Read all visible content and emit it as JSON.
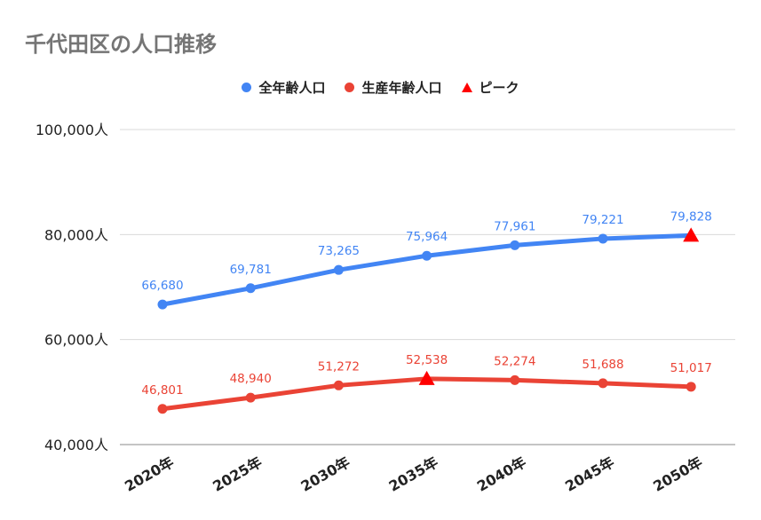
{
  "chart_data": {
    "type": "line",
    "title": "千代田区の人口推移",
    "categories": [
      "2020年",
      "2025年",
      "2030年",
      "2035年",
      "2040年",
      "2045年",
      "2050年"
    ],
    "series": [
      {
        "name": "全年齢人口",
        "color": "#4285f4",
        "values": [
          66680,
          69781,
          73265,
          75964,
          77961,
          79221,
          79828
        ],
        "labels": [
          "66,680",
          "69,781",
          "73,265",
          "75,964",
          "77,961",
          "79,221",
          "79,828"
        ],
        "peak_index": 6
      },
      {
        "name": "生産年齢人口",
        "color": "#ea4335",
        "values": [
          46801,
          48940,
          51272,
          52538,
          52274,
          51688,
          51017
        ],
        "labels": [
          "46,801",
          "48,940",
          "51,272",
          "52,538",
          "52,274",
          "51,688",
          "51,017"
        ],
        "peak_index": 3
      }
    ],
    "peak_marker": {
      "name": "ピーク",
      "color": "#ff0000",
      "shape": "triangle"
    },
    "ylim": [
      40000,
      100000
    ],
    "yticks": [
      {
        "value": 40000,
        "label": "40,000人"
      },
      {
        "value": 60000,
        "label": "60,000人"
      },
      {
        "value": 80000,
        "label": "80,000人"
      },
      {
        "value": 100000,
        "label": "100,000人"
      }
    ],
    "grid": true,
    "legend_position": "top-center"
  }
}
